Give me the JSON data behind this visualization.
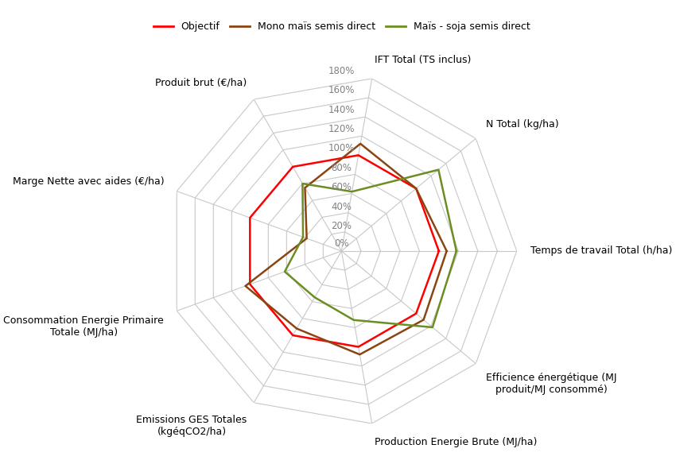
{
  "axis_labels": [
    "Temps de travail Total (h/ha)",
    "N Total (kg/ha)",
    "IFT Total (TS inclus)",
    "Produit brut (€/ha)",
    "Marge Nette avec aides (€/ha)",
    "Consommation Energie Primaire\nTotale (MJ/ha)",
    "Emissions GES Totales\n(kgéqCO2/ha)",
    "Production Energie Brute (MJ/ha)",
    "Efficience énergétique (MJ\nproduit/MJ consommé)"
  ],
  "r_max": 180,
  "r_ticks": [
    0,
    20,
    40,
    60,
    80,
    100,
    120,
    140,
    160,
    180
  ],
  "series": {
    "Objectif": {
      "color": "#FF0000",
      "linewidth": 1.8,
      "values": [
        100,
        100,
        100,
        100,
        100,
        100,
        100,
        100,
        100
      ]
    },
    "Mono maïs semis direct": {
      "color": "#8B4513",
      "linewidth": 1.8,
      "values": [
        108,
        100,
        112,
        75,
        38,
        105,
        92,
        108,
        110
      ]
    },
    "Maïs - soja semis direct": {
      "color": "#6B8E23",
      "linewidth": 1.8,
      "values": [
        118,
        130,
        62,
        80,
        42,
        62,
        55,
        72,
        122
      ]
    }
  },
  "legend_entries": [
    "Objectif",
    "Mono maïs semis direct",
    "Maïs - soja semis direct"
  ],
  "legend_colors": [
    "#FF0000",
    "#8B4513",
    "#6B8E23"
  ],
  "grid_color": "#C8C8C8",
  "background_color": "#FFFFFF",
  "label_fontsize": 9,
  "tick_fontsize": 8.5
}
